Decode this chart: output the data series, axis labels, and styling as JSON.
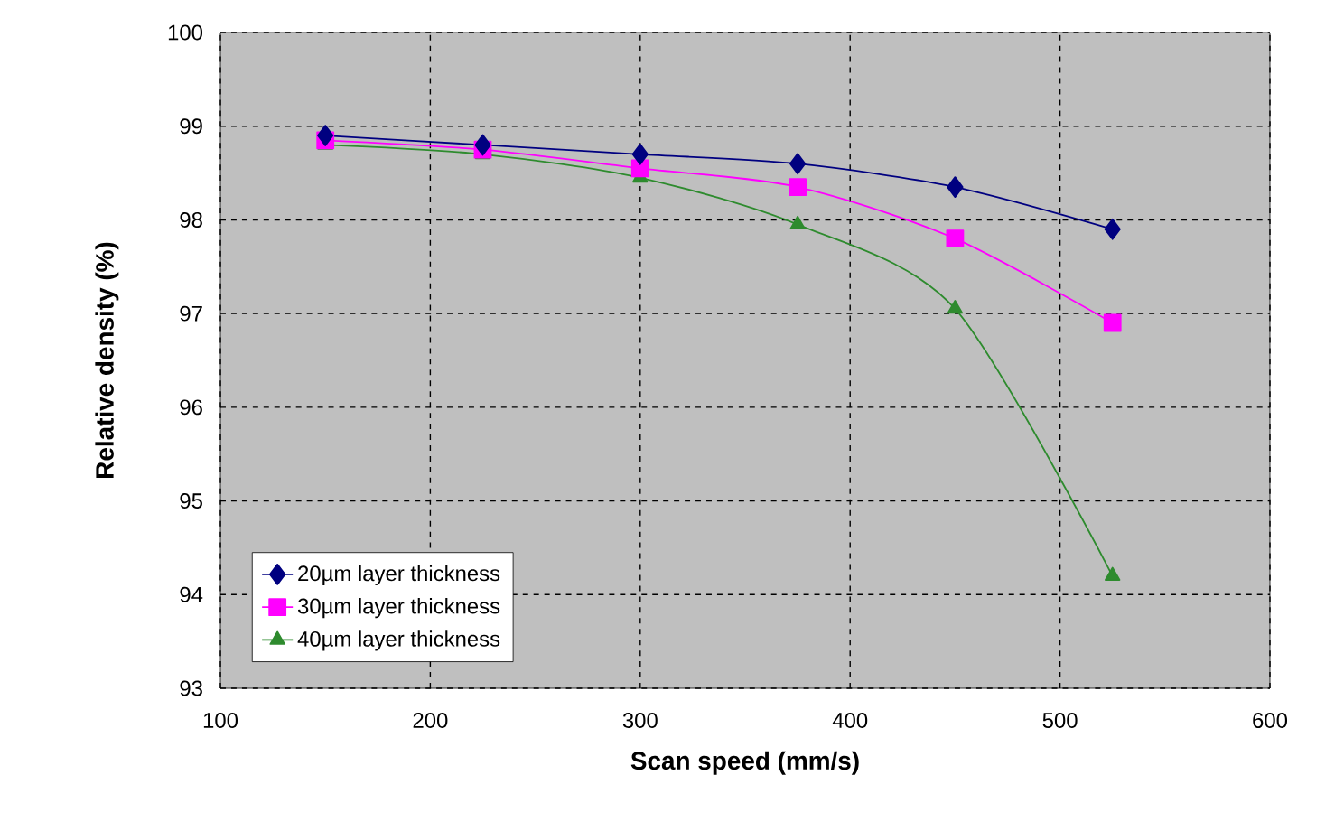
{
  "chart_data": {
    "type": "line",
    "xlabel": "Scan speed (mm/s)",
    "ylabel": "Relative density (%)",
    "x": [
      150,
      225,
      300,
      375,
      450,
      525
    ],
    "series": [
      {
        "name": "20µm layer thickness",
        "color": "#000080",
        "marker": "diamond",
        "values": [
          98.9,
          98.8,
          98.7,
          98.6,
          98.35,
          97.9
        ]
      },
      {
        "name": "30µm layer thickness",
        "color": "#ff00ff",
        "marker": "square",
        "values": [
          98.85,
          98.75,
          98.55,
          98.35,
          97.8,
          96.9
        ]
      },
      {
        "name": "40µm layer thickness",
        "color": "#2e8b2e",
        "marker": "triangle",
        "values": [
          98.8,
          98.7,
          98.45,
          97.95,
          97.05,
          94.2
        ]
      }
    ],
    "xlim": [
      100,
      600
    ],
    "ylim": [
      93,
      100
    ],
    "xticks": [
      100,
      200,
      300,
      400,
      500,
      600
    ],
    "yticks": [
      93,
      94,
      95,
      96,
      97,
      98,
      99,
      100
    ],
    "grid": true,
    "legend": "bottom left",
    "line_style": "solid"
  }
}
